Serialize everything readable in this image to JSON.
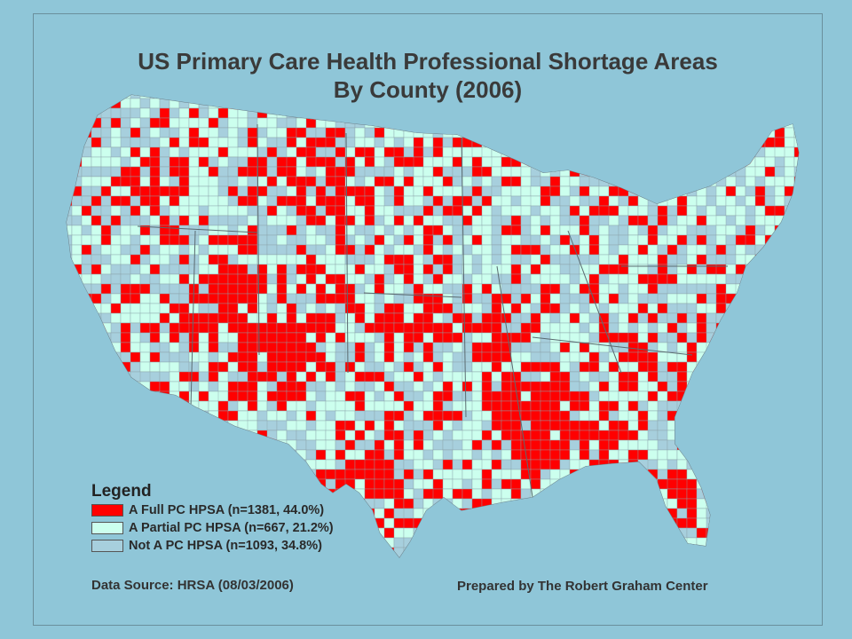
{
  "title": {
    "line1": "US Primary Care Health Professional Shortage Areas",
    "line2": "By County (2006)"
  },
  "legend": {
    "title": "Legend",
    "items": [
      {
        "label": "A Full PC HPSA (n=1381, 44.0%)",
        "color": "#ff0000"
      },
      {
        "label": "A Partial PC HPSA (n=667, 21.2%)",
        "color": "#ccffee"
      },
      {
        "label": "Not A PC HPSA (n=1093, 34.8%)",
        "color": "#a7cfdd"
      }
    ]
  },
  "footer": {
    "data_source": "Data Source: HRSA (08/03/2006)",
    "prepared_by": "Prepared by The Robert Graham Center"
  },
  "colors": {
    "background": "#8fc6d8",
    "full": "#ff0000",
    "partial": "#ccffee",
    "not": "#a7cfdd"
  }
}
